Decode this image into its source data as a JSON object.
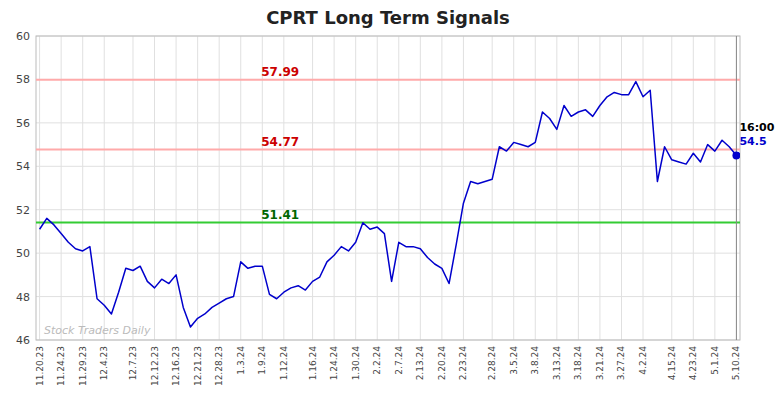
{
  "chart_data": {
    "type": "line",
    "title": "CPRT Long Term Signals",
    "categories": [
      "11.20.23",
      null,
      null,
      "11.24.23",
      null,
      null,
      "11.29.23",
      null,
      null,
      "12.4.23",
      null,
      null,
      null,
      "12.7.23",
      null,
      null,
      "12.12.23",
      null,
      null,
      "12.16.23",
      null,
      null,
      "12.21.23",
      null,
      null,
      "12.28.23",
      null,
      null,
      "1.3.24",
      null,
      null,
      "1.9.24",
      null,
      null,
      "1.12.24",
      null,
      null,
      null,
      "1.16.24",
      null,
      null,
      "1.24.24",
      null,
      null,
      "1.30.24",
      null,
      null,
      "2.2.24",
      null,
      null,
      "2.7.24",
      null,
      null,
      "2.13.24",
      null,
      null,
      "2.20.24",
      null,
      null,
      "2.23.24",
      null,
      null,
      null,
      "2.28.24",
      null,
      null,
      "3.5.24",
      null,
      null,
      "3.8.24",
      null,
      null,
      "3.13.24",
      null,
      null,
      "3.18.24",
      null,
      null,
      "3.21.24",
      null,
      null,
      "3.27.24",
      null,
      null,
      "4.2.24",
      null,
      null,
      null,
      "4.15.24",
      null,
      null,
      "4.23.24",
      null,
      null,
      "5.1.24",
      null,
      null,
      "5.10.24"
    ],
    "values": [
      51.1,
      51.6,
      51.3,
      50.9,
      50.5,
      50.2,
      50.1,
      50.3,
      47.9,
      47.6,
      47.2,
      48.2,
      49.3,
      49.2,
      49.4,
      48.7,
      48.4,
      48.8,
      48.6,
      49.0,
      47.5,
      46.6,
      47.0,
      47.2,
      47.5,
      47.7,
      47.9,
      48.0,
      49.6,
      49.3,
      49.4,
      49.4,
      48.1,
      47.9,
      48.2,
      48.4,
      48.5,
      48.3,
      48.7,
      48.9,
      49.6,
      49.9,
      50.3,
      50.1,
      50.5,
      51.4,
      51.1,
      51.2,
      50.9,
      48.7,
      50.5,
      50.3,
      50.3,
      50.2,
      49.8,
      49.5,
      49.3,
      48.6,
      50.4,
      52.3,
      53.3,
      53.2,
      53.3,
      53.4,
      54.9,
      54.7,
      55.1,
      55.0,
      54.9,
      55.1,
      56.5,
      56.2,
      55.7,
      56.8,
      56.3,
      56.5,
      56.6,
      56.3,
      56.8,
      57.2,
      57.4,
      57.3,
      57.3,
      57.9,
      57.2,
      57.5,
      53.3,
      54.9,
      54.3,
      54.2,
      54.1,
      54.6,
      54.2,
      55.0,
      54.7,
      55.2,
      54.9,
      54.5
    ],
    "color": "#0000cc",
    "ylim": [
      46,
      60
    ],
    "yticks": [
      46,
      48,
      50,
      52,
      54,
      56,
      58,
      60
    ],
    "grid": true,
    "hlines": [
      {
        "value": 57.99,
        "label": "57.99",
        "color": "#ffaaaa",
        "label_color": "#cc0000"
      },
      {
        "value": 54.77,
        "label": "54.77",
        "color": "#ffaaaa",
        "label_color": "#cc0000"
      },
      {
        "value": 51.41,
        "label": "51.41",
        "color": "#33cc33",
        "label_color": "#006600"
      }
    ],
    "annotations": [
      {
        "text": "16:00",
        "color": "#000000"
      },
      {
        "text": "54.5",
        "color": "#0000cc"
      }
    ],
    "watermark": {
      "text": "Stock Traders Daily",
      "color": "#bbbbbb"
    }
  }
}
